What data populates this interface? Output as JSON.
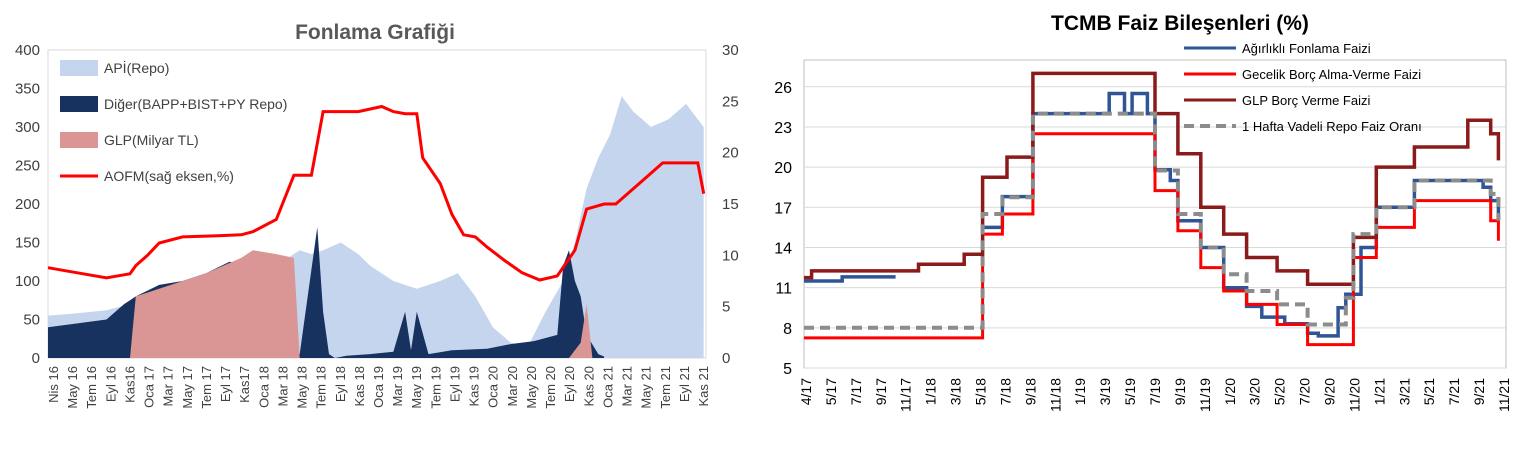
{
  "charts": [
    {
      "title": "Fonlama Grafiği",
      "legend": [
        {
          "label": "APİ(Repo)",
          "color": "#c5d5ee",
          "kind": "area"
        },
        {
          "label": "Diğer(BAPP+BIST+PY Repo)",
          "color": "#17325e",
          "kind": "area"
        },
        {
          "label": "GLP(Milyar TL)",
          "color": "#d99694",
          "kind": "area"
        },
        {
          "label": "AOFM(sağ eksen,%)",
          "color": "#ff0000",
          "kind": "line"
        }
      ],
      "x_ticks": [
        "Nis 16",
        "May 16",
        "Tem 16",
        "Eyl 16",
        "Kas16",
        "Oca 17",
        "Mar 17",
        "May 17",
        "Tem 17",
        "Eyl 17",
        "Kas17",
        "Oca 18",
        "Mar 18",
        "May 18",
        "Tem 18",
        "Eyl 18",
        "Kas 18",
        "Oca 19",
        "Mar 19",
        "May 19",
        "Tem 19",
        "Eyl 19",
        "Kas 19",
        "Oca 20",
        "Mar 20",
        "May 20",
        "Tem 20",
        "Eyl 20",
        "Kas 20",
        "Oca 21",
        "Mar 21",
        "May 21",
        "Tem 21",
        "Eyl 21",
        "Kas 21"
      ],
      "y_left_ticks": [
        "0",
        "50",
        "100",
        "150",
        "200",
        "250",
        "300",
        "350",
        "400"
      ],
      "y_right_ticks": [
        "0",
        "5",
        "10",
        "15",
        "20",
        "25",
        "30"
      ]
    },
    {
      "title": "TCMB  Faiz Bileşenleri (%)",
      "legend": [
        {
          "label": "Ağırlıklı  Fonlama Faizi",
          "color": "#2f5597",
          "kind": "line"
        },
        {
          "label": "Gecelik Borç Alma-Verme Faizi",
          "color": "#ff0000",
          "kind": "line"
        },
        {
          "label": "GLP Borç Verme Faizi",
          "color": "#8b1a1a",
          "kind": "line"
        },
        {
          "label": "1 Hafta Vadeli Repo Faiz Oranı",
          "color": "#8c8c8c",
          "kind": "dash"
        }
      ],
      "x_ticks": [
        "4/17",
        "5/17",
        "7/17",
        "9/17",
        "11/17",
        "1/18",
        "3/18",
        "5/18",
        "7/18",
        "9/18",
        "11/18",
        "1/19",
        "3/19",
        "5/19",
        "7/19",
        "9/19",
        "11/19",
        "1/20",
        "3/20",
        "5/20",
        "7/20",
        "9/20",
        "11/20",
        "1/21",
        "3/21",
        "5/21",
        "7/21",
        "9/21",
        "11/21"
      ],
      "y_ticks": [
        "5",
        "8",
        "11",
        "14",
        "17",
        "20",
        "23",
        "26"
      ]
    }
  ],
  "chart_data": [
    {
      "type": "area",
      "title": "Fonlama Grafiği",
      "x_range": [
        "2016-04",
        "2021-11"
      ],
      "y_left_range": [
        0,
        400
      ],
      "y_right_range": [
        0,
        30
      ],
      "series": [
        {
          "name": "APİ(Repo)",
          "axis": "left",
          "color": "#c5d5ee",
          "x": [
            2016.25,
            2016.5,
            2016.75,
            2016.95,
            2017.0,
            2017.3,
            2017.6,
            2017.9,
            2018.1,
            2018.3,
            2018.4,
            2018.5,
            2018.6,
            2018.75,
            2018.9,
            2019.0,
            2019.2,
            2019.4,
            2019.6,
            2019.75,
            2019.9,
            2020.05,
            2020.2,
            2020.35,
            2020.5,
            2020.65,
            2020.75,
            2020.85,
            2020.95,
            2021.05,
            2021.15,
            2021.25,
            2021.4,
            2021.55,
            2021.7,
            2021.85
          ],
          "values": [
            55,
            58,
            62,
            70,
            55,
            80,
            95,
            110,
            120,
            130,
            140,
            135,
            140,
            150,
            135,
            120,
            100,
            90,
            100,
            110,
            80,
            40,
            20,
            15,
            60,
            100,
            150,
            220,
            260,
            290,
            340,
            320,
            300,
            310,
            330,
            300
          ]
        },
        {
          "name": "Diğer(BAPP+BIST+PY Repo)",
          "axis": "left",
          "color": "#17325e",
          "x": [
            2016.25,
            2016.5,
            2016.75,
            2016.9,
            2017.0,
            2017.2,
            2017.4,
            2017.6,
            2017.8,
            2018.0,
            2018.2,
            2018.3,
            2018.4,
            2018.55,
            2018.6,
            2018.65,
            2018.7,
            2018.8,
            2019.0,
            2019.2,
            2019.3,
            2019.35,
            2019.4,
            2019.5,
            2019.7,
            2020.0,
            2020.2,
            2020.4,
            2020.6,
            2020.65,
            2020.7,
            2020.75,
            2020.8,
            2020.85,
            2020.95,
            2021.0
          ],
          "values": [
            40,
            45,
            50,
            70,
            80,
            95,
            100,
            110,
            125,
            120,
            110,
            0,
            5,
            170,
            60,
            5,
            0,
            3,
            5,
            8,
            60,
            10,
            60,
            5,
            10,
            12,
            18,
            22,
            30,
            120,
            140,
            100,
            80,
            30,
            5,
            2
          ]
        },
        {
          "name": "GLP(Milyar TL)",
          "axis": "left",
          "color": "#d99694",
          "x": [
            2016.95,
            2017.0,
            2017.3,
            2017.6,
            2017.9,
            2018.0,
            2018.2,
            2018.35,
            2018.4,
            2020.7,
            2020.8,
            2020.85,
            2020.9
          ],
          "values": [
            0,
            80,
            95,
            110,
            130,
            140,
            135,
            130,
            0,
            0,
            20,
            70,
            0
          ]
        },
        {
          "name": "AOFM(sağ eksen,%)",
          "axis": "right",
          "color": "#ff0000",
          "x": [
            2016.25,
            2016.5,
            2016.75,
            2016.95,
            2017.0,
            2017.1,
            2017.2,
            2017.4,
            2017.7,
            2017.9,
            2018.0,
            2018.2,
            2018.35,
            2018.4,
            2018.5,
            2018.6,
            2018.7,
            2018.9,
            2019.1,
            2019.2,
            2019.3,
            2019.4,
            2019.45,
            2019.6,
            2019.7,
            2019.8,
            2019.9,
            2020.0,
            2020.15,
            2020.3,
            2020.45,
            2020.6,
            2020.75,
            2020.85,
            2021.0,
            2021.1,
            2021.25,
            2021.5,
            2021.75,
            2021.8,
            2021.85
          ],
          "values": [
            8.8,
            8.3,
            7.8,
            8.2,
            9.0,
            10.0,
            11.2,
            11.8,
            11.9,
            12.0,
            12.3,
            13.5,
            17.8,
            17.8,
            17.8,
            24.0,
            24.0,
            24.0,
            24.5,
            24.0,
            23.8,
            23.8,
            19.5,
            17.0,
            14.0,
            12.0,
            11.8,
            10.8,
            9.5,
            8.3,
            7.6,
            8.0,
            10.5,
            14.5,
            15.0,
            15.0,
            16.5,
            19.0,
            19.0,
            19.0,
            16.0
          ]
        }
      ]
    },
    {
      "type": "line",
      "title": "TCMB  Faiz Bileşenleri (%)",
      "x_range": [
        "2017-04",
        "2021-11"
      ],
      "y_range": [
        5,
        26
      ],
      "series": [
        {
          "name": "Ağırlıklı  Fonlama Faizi",
          "color": "#2f5597",
          "x": [
            2017.25,
            2017.5,
            2017.85,
            2018.35,
            2018.42,
            2018.55,
            2018.58,
            2018.75,
            2019.0,
            2019.2,
            2019.25,
            2019.35,
            2019.4,
            2019.5,
            2019.55,
            2019.65,
            2019.7,
            2019.85,
            2020.0,
            2020.15,
            2020.25,
            2020.4,
            2020.55,
            2020.62,
            2020.75,
            2020.8,
            2020.9,
            2021.0,
            2021.25,
            2021.55,
            2021.7,
            2021.75,
            2021.8
          ],
          "values": [
            11.5,
            11.8,
            11.8,
            null,
            15.5,
            17.8,
            17.8,
            24.0,
            24.0,
            24.0,
            25.5,
            24.0,
            25.5,
            24.0,
            19.8,
            19.0,
            16.0,
            14.0,
            11.0,
            9.6,
            8.8,
            8.3,
            7.6,
            7.4,
            9.5,
            10.5,
            14.0,
            17.0,
            19.0,
            19.0,
            18.5,
            17.5,
            16.2
          ]
        },
        {
          "name": "Gecelik Borç Alma-Verme Faizi",
          "color": "#ff0000",
          "x": [
            2017.25,
            2018.35,
            2018.42,
            2018.55,
            2018.58,
            2018.75,
            2019.5,
            2019.55,
            2019.7,
            2019.85,
            2020.0,
            2020.15,
            2020.35,
            2020.55,
            2020.8,
            2020.85,
            2021.0,
            2021.25,
            2021.6,
            2021.75,
            2021.8
          ],
          "values": [
            7.25,
            7.25,
            15.0,
            16.5,
            16.5,
            22.5,
            22.5,
            18.25,
            15.25,
            12.5,
            10.75,
            9.75,
            8.25,
            6.75,
            6.75,
            13.25,
            15.5,
            17.5,
            17.5,
            16.0,
            14.5
          ]
        },
        {
          "name": "GLP Borç Verme Faizi",
          "color": "#8b1a1a",
          "x": [
            2017.25,
            2017.3,
            2018.0,
            2018.3,
            2018.35,
            2018.42,
            2018.55,
            2018.58,
            2018.75,
            2019.5,
            2019.55,
            2019.7,
            2019.85,
            2020.0,
            2020.15,
            2020.35,
            2020.55,
            2020.8,
            2020.85,
            2021.0,
            2021.25,
            2021.6,
            2021.75,
            2021.8
          ],
          "values": [
            11.75,
            12.25,
            12.75,
            13.5,
            13.5,
            19.25,
            19.25,
            20.75,
            27.0,
            27.0,
            24.0,
            21.0,
            17.0,
            15.0,
            13.25,
            12.25,
            11.25,
            11.25,
            14.75,
            20.0,
            21.5,
            23.5,
            22.5,
            20.5
          ]
        },
        {
          "name": "1 Hafta Vadeli Repo Faiz Oranı",
          "color": "#8c8c8c",
          "x": [
            2017.25,
            2018.35,
            2018.42,
            2018.55,
            2018.58,
            2018.75,
            2019.5,
            2019.55,
            2019.7,
            2019.85,
            2020.0,
            2020.15,
            2020.35,
            2020.55,
            2020.8,
            2020.85,
            2021.0,
            2021.25,
            2021.6,
            2021.75,
            2021.8
          ],
          "values": [
            8.0,
            8.0,
            16.5,
            17.75,
            17.75,
            24.0,
            24.0,
            19.75,
            16.5,
            14.0,
            12.0,
            10.75,
            9.75,
            8.25,
            10.25,
            15.0,
            17.0,
            19.0,
            19.0,
            18.0,
            16.0
          ]
        }
      ]
    }
  ]
}
